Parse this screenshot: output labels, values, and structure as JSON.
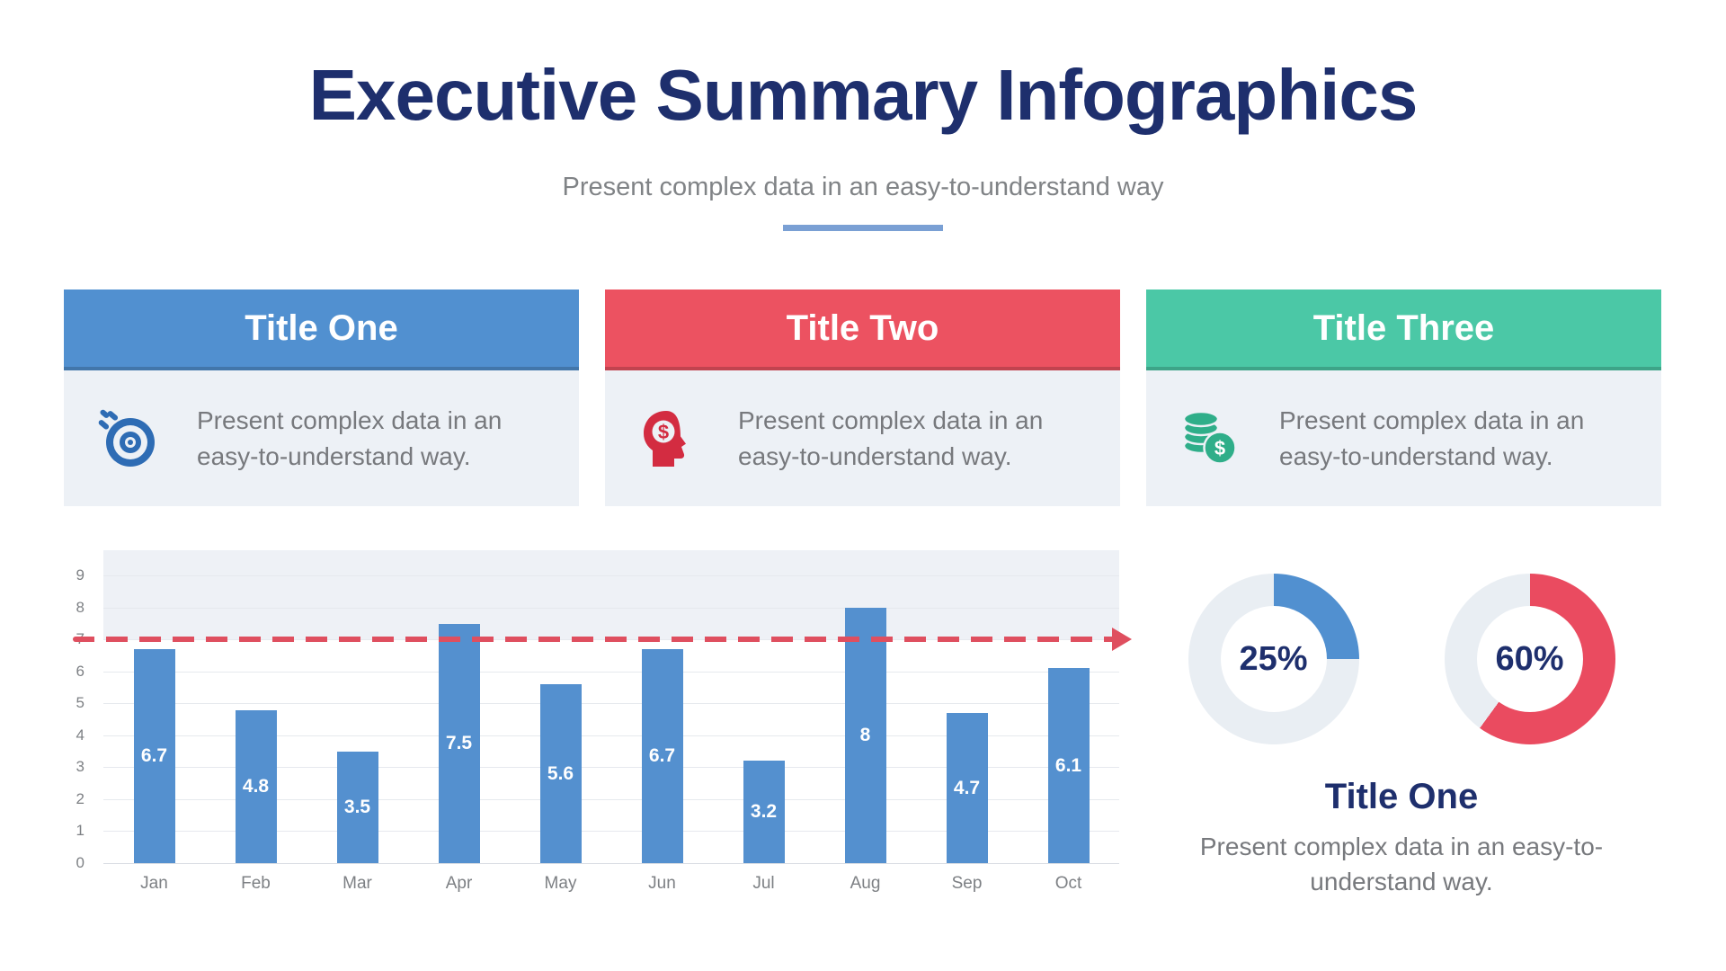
{
  "page": {
    "title": "Executive Summary Infographics",
    "subtitle": "Present complex data in an easy-to-understand way"
  },
  "palette": {
    "navy": "#1e2f6d",
    "blue": "#5190d0",
    "red": "#ec5261",
    "green": "#4bc8a6",
    "target_red": "#df4f5f",
    "card_body_bg": "#edf1f6"
  },
  "cards": [
    {
      "title": "Title One",
      "body": "Present complex data in an easy-to-understand way.",
      "header_color": "#5190d0",
      "icon": "target-icon"
    },
    {
      "title": "Title Two",
      "body": "Present complex data in an easy-to-understand way.",
      "header_color": "#ec5261",
      "icon": "money-mind-icon"
    },
    {
      "title": "Title Three",
      "body": "Present complex data in an easy-to-understand way.",
      "header_color": "#4bc8a6",
      "icon": "coins-icon"
    }
  ],
  "chart_data": [
    {
      "type": "bar",
      "categories": [
        "Jan",
        "Feb",
        "Mar",
        "Apr",
        "May",
        "Jun",
        "Jul",
        "Aug",
        "Sep",
        "Oct"
      ],
      "values": [
        6.7,
        4.8,
        3.5,
        7.5,
        5.6,
        6.7,
        3.2,
        8,
        4.7,
        6.1
      ],
      "ylim": [
        0,
        9
      ],
      "yticks": [
        0,
        1,
        2,
        3,
        4,
        5,
        6,
        7,
        8,
        9
      ],
      "target_line": 7,
      "bar_color": "#5490cf",
      "target_color": "#df4f5f",
      "band_above_target": true,
      "band_color": "#eef1f6",
      "grid": true,
      "data_labels": "inside-center-white",
      "legend": "none",
      "title": ""
    },
    {
      "type": "pie",
      "variant": "donut",
      "values": [
        25,
        75
      ],
      "center_label": "25%",
      "segment_color": "#5190d0",
      "track_color": "#e9eef3"
    },
    {
      "type": "pie",
      "variant": "donut",
      "values": [
        60,
        40
      ],
      "center_label": "60%",
      "segment_color": "#ea4b60",
      "track_color": "#e9eef3"
    }
  ],
  "highlight": {
    "title": "Title One",
    "body": "Present complex data in an easy-to-understand way."
  }
}
